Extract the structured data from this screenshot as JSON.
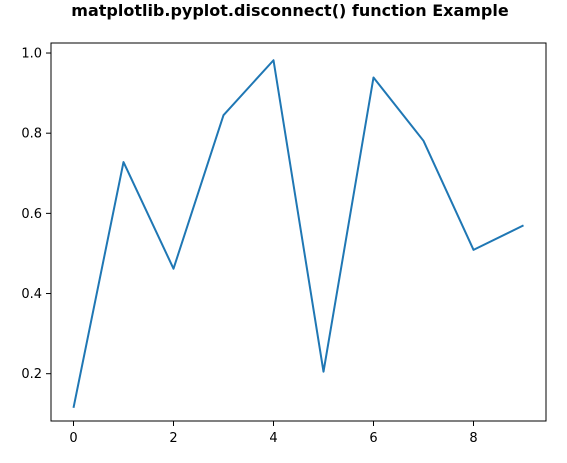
{
  "chart_data": {
    "type": "line",
    "title": "matplotlib.pyplot.disconnect() function Example",
    "xlabel": "",
    "ylabel": "",
    "x": [
      0,
      1,
      2,
      3,
      4,
      5,
      6,
      7,
      8,
      9
    ],
    "series": [
      {
        "values": [
          0.115,
          0.728,
          0.462,
          0.845,
          0.982,
          0.205,
          0.939,
          0.781,
          0.509,
          0.57
        ],
        "color": "#1f77b4"
      }
    ],
    "xlim": [
      -0.45,
      9.45
    ],
    "ylim": [
      0.082,
      1.025
    ],
    "xticks": [
      0,
      2,
      4,
      6,
      8
    ],
    "yticks": [
      0.2,
      0.4,
      0.6,
      0.8,
      1.0
    ],
    "xtick_labels": [
      "0",
      "2",
      "4",
      "6",
      "8"
    ],
    "ytick_labels": [
      "0.2",
      "0.4",
      "0.6",
      "0.8",
      "1.0"
    ],
    "grid": false,
    "legend": "none"
  }
}
